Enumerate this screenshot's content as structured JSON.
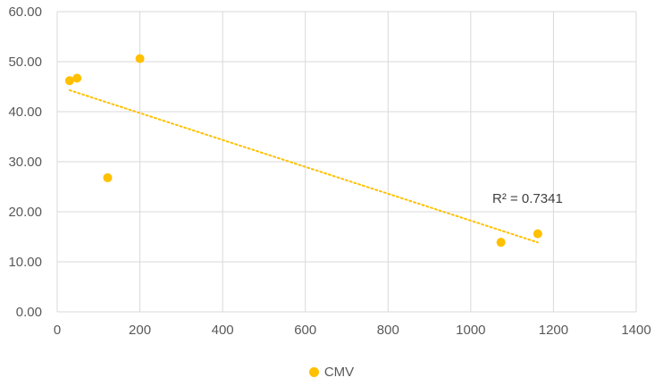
{
  "chart_data": {
    "type": "scatter",
    "xlim": [
      0,
      1400
    ],
    "ylim": [
      0,
      60
    ],
    "x_ticks": [
      "0",
      "200",
      "400",
      "600",
      "800",
      "1000",
      "1200",
      "1400"
    ],
    "y_ticks": [
      "0.00",
      "10.00",
      "20.00",
      "30.00",
      "40.00",
      "50.00",
      "60.00"
    ],
    "grid": true,
    "legend_position": "bottom",
    "series": [
      {
        "name": "CMV",
        "color": "#FFC000",
        "points": [
          {
            "x": 30,
            "y": 46.2
          },
          {
            "x": 48,
            "y": 46.7
          },
          {
            "x": 122,
            "y": 26.8
          },
          {
            "x": 200,
            "y": 50.6
          },
          {
            "x": 1073,
            "y": 13.9
          },
          {
            "x": 1162,
            "y": 15.6
          }
        ],
        "trendline": {
          "type": "linear",
          "style": "dotted",
          "x_range": [
            30,
            1162
          ],
          "r_squared_label": "R² = 0.7341"
        }
      }
    ]
  }
}
